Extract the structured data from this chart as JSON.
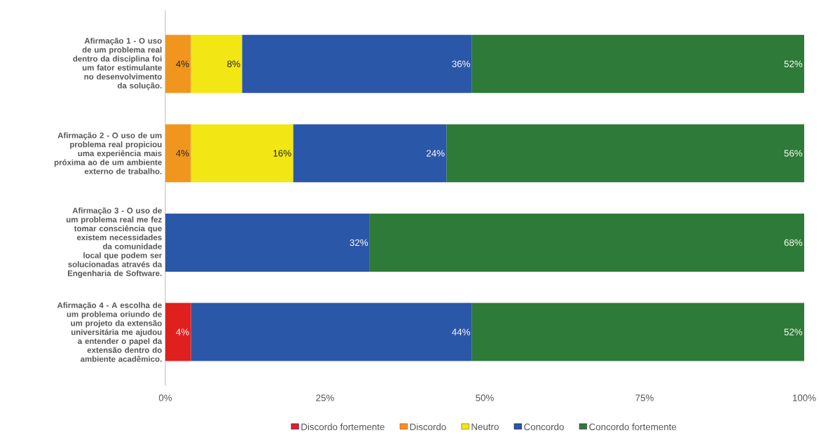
{
  "chart_data": {
    "type": "bar",
    "orientation": "horizontal",
    "stacked": true,
    "categories": [
      "Afirmação 1 - O uso de um problema real dentro da disciplina foi um fator estimulante no desenvolvimento da solução.",
      "Afirmação 2 - O uso de um problema real propiciou uma experiência mais próxima ao de um ambiente externo de trabalho.",
      "Afirmação 3 - O uso de um problema real me fez tomar consciência que existem necessidades da comunidade local que podem ser solucionadas através da Engenharia de Software.",
      "Afirmação 4 - A escolha de um problema oriundo de um projeto da extensão universitária me ajudou a entender o papel da extensão dentro do ambiente acadêmico."
    ],
    "series": [
      {
        "name": "Discordo fortemente",
        "color": "#e0201e",
        "values": [
          0,
          0,
          0,
          4
        ],
        "value_labels": [
          null,
          null,
          null,
          "4%"
        ]
      },
      {
        "name": "Discordo",
        "color": "#f0961e",
        "values": [
          4,
          4,
          0,
          0
        ],
        "value_labels": [
          "4%",
          "4%",
          null,
          null
        ]
      },
      {
        "name": "Neutro",
        "color": "#f2e614",
        "values": [
          8,
          16,
          0,
          0
        ],
        "value_labels": [
          "8%",
          "16%",
          null,
          null
        ]
      },
      {
        "name": "Concordo",
        "color": "#2b57a8",
        "values": [
          36,
          24,
          32,
          44
        ],
        "value_labels": [
          "36%",
          "24%",
          "32%",
          "44%"
        ]
      },
      {
        "name": "Concordo fortemente",
        "color": "#2e7a38",
        "values": [
          52,
          56,
          68,
          52
        ],
        "value_labels": [
          "52%",
          "56%",
          "68%",
          "52%"
        ]
      }
    ],
    "xlim": [
      0,
      100
    ],
    "xticks": [
      {
        "value": 0,
        "label": "0%"
      },
      {
        "value": 25,
        "label": "25%"
      },
      {
        "value": 50,
        "label": "50%"
      },
      {
        "value": 75,
        "label": "75%"
      },
      {
        "value": 100,
        "label": "100%"
      }
    ],
    "grid": false,
    "legend": "bottom"
  }
}
